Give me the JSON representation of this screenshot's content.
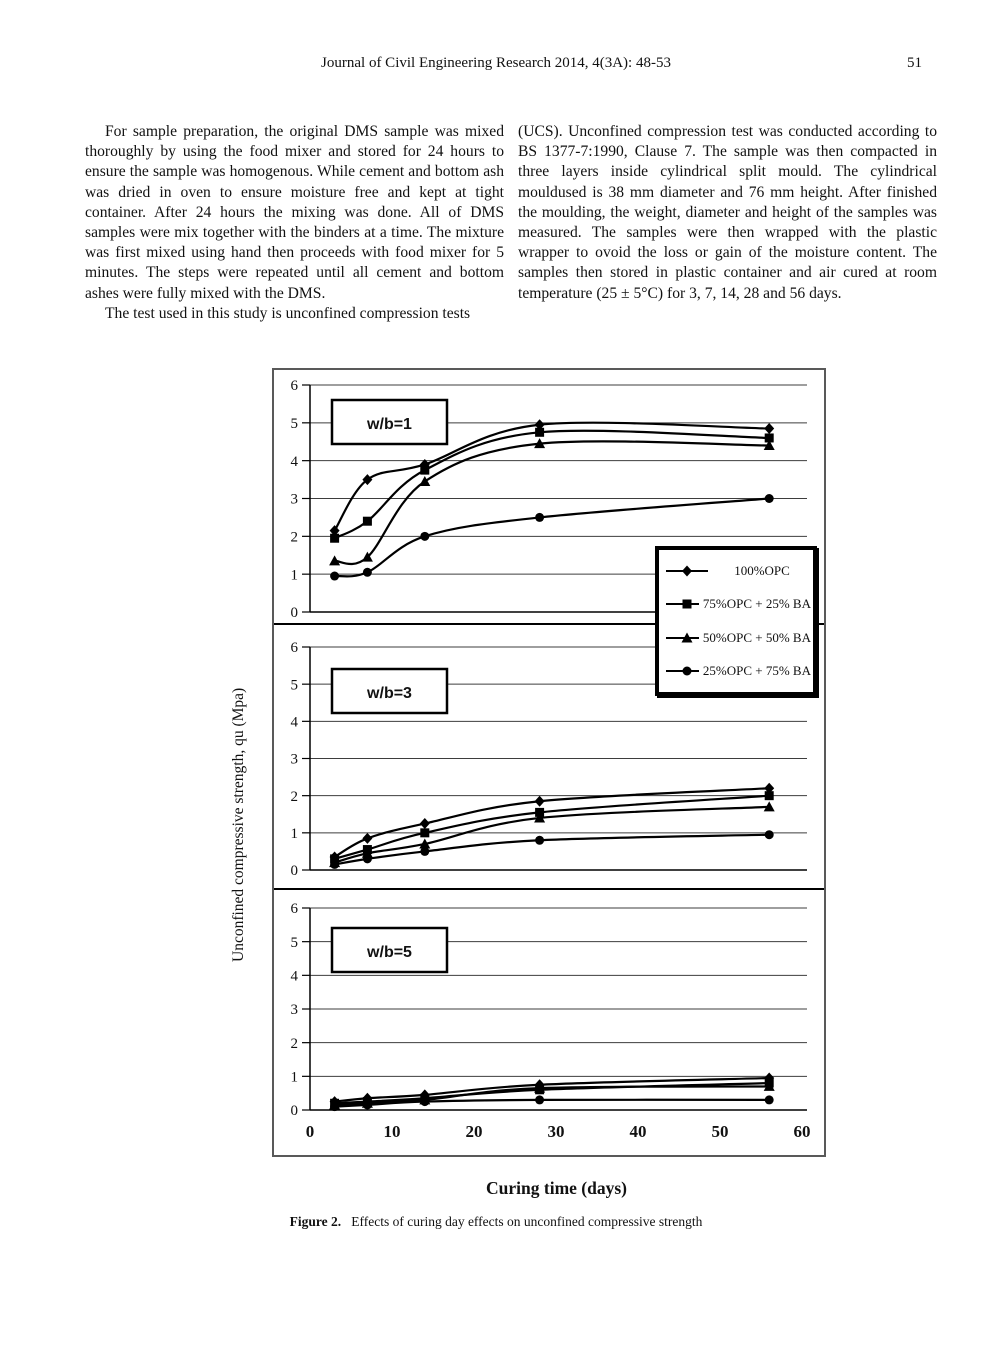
{
  "header": {
    "journal": "Journal of Civil Engineering Research 2014, 4(3A): 48-53",
    "page_number": "51"
  },
  "body": {
    "left_column": [
      "For sample preparation, the original DMS sample was mixed thoroughly by using the food mixer and stored for 24 hours to ensure the sample was homogenous. While cement and bottom ash was dried in oven to ensure moisture free and kept at tight container. After 24 hours the mixing was done. All of DMS samples were mix together with the binders at a time. The mixture was first mixed using hand then proceeds with food mixer for 5 minutes. The steps were repeated until all cement and bottom ashes were fully mixed with the DMS.",
      "The test used in this study is unconfined compression tests"
    ],
    "right_column": [
      "(UCS). Unconfined compression test was conducted according to BS 1377-7:1990, Clause 7. The sample was then compacted in three layers inside cylindrical split mould. The cylindrical mouldused is 38 mm diameter and 76 mm height. After finished the moulding, the weight, diameter and height of the samples was measured. The samples were then wrapped with the plastic wrapper to ovoid the loss or gain of the moisture content. The samples then stored in plastic container and air cured at room temperature (25 ± 5°C) for 3, 7, 14, 28 and 56 days."
    ]
  },
  "figure": {
    "caption_label": "Figure 2.",
    "caption_text": "Effects of curing day effects on unconfined compressive strength",
    "x_axis_label": "Curing time (days)",
    "y_axis_label": "Unconfined compressive strength, qu (Mpa)",
    "legend": {
      "position": "right, overlapping first and second panel",
      "items": [
        {
          "marker": "diamond",
          "label": "100%OPC"
        },
        {
          "marker": "square",
          "label": "75%OPC + 25% BA"
        },
        {
          "marker": "triangle",
          "label": "50%OPC + 50% BA"
        },
        {
          "marker": "circle",
          "label": "25%OPC + 75% BA"
        }
      ]
    }
  },
  "chart_data": [
    {
      "type": "line",
      "title": "w/b=1",
      "x": [
        3,
        7,
        14,
        28,
        56
      ],
      "xlim": [
        0,
        60
      ],
      "ylim": [
        0,
        6
      ],
      "xticks": [
        0,
        10,
        20,
        30,
        40,
        50,
        60
      ],
      "yticks": [
        0,
        1,
        2,
        3,
        4,
        5,
        6
      ],
      "grid": true,
      "xlabel": "Curing time (days)",
      "ylabel": "Unconfined compressive strength, qu (Mpa)",
      "series": [
        {
          "name": "100%OPC",
          "marker": "diamond",
          "values": [
            2.15,
            3.5,
            3.9,
            4.95,
            4.85
          ]
        },
        {
          "name": "75%OPC + 25% BA",
          "marker": "square",
          "values": [
            1.95,
            2.4,
            3.75,
            4.75,
            4.6
          ]
        },
        {
          "name": "50%OPC + 50% BA",
          "marker": "triangle",
          "values": [
            1.35,
            1.45,
            3.45,
            4.45,
            4.4
          ]
        },
        {
          "name": "25%OPC + 75% BA",
          "marker": "circle",
          "values": [
            0.95,
            1.05,
            2.0,
            2.5,
            3.0
          ]
        }
      ]
    },
    {
      "type": "line",
      "title": "w/b=3",
      "x": [
        3,
        7,
        14,
        28,
        56
      ],
      "xlim": [
        0,
        60
      ],
      "ylim": [
        0,
        6
      ],
      "xticks": [
        0,
        10,
        20,
        30,
        40,
        50,
        60
      ],
      "yticks": [
        0,
        1,
        2,
        3,
        4,
        5,
        6
      ],
      "grid": true,
      "xlabel": "Curing time (days)",
      "ylabel": "Unconfined compressive strength, qu (Mpa)",
      "series": [
        {
          "name": "100%OPC",
          "marker": "diamond",
          "values": [
            0.35,
            0.85,
            1.25,
            1.85,
            2.2
          ]
        },
        {
          "name": "75%OPC + 25% BA",
          "marker": "square",
          "values": [
            0.3,
            0.55,
            1.0,
            1.55,
            2.0
          ]
        },
        {
          "name": "50%OPC + 50% BA",
          "marker": "triangle",
          "values": [
            0.2,
            0.45,
            0.7,
            1.4,
            1.7
          ]
        },
        {
          "name": "25%OPC + 75% BA",
          "marker": "circle",
          "values": [
            0.15,
            0.3,
            0.5,
            0.8,
            0.95
          ]
        }
      ]
    },
    {
      "type": "line",
      "title": "w/b=5",
      "x": [
        3,
        7,
        14,
        28,
        56
      ],
      "xlim": [
        0,
        60
      ],
      "ylim": [
        0,
        6
      ],
      "xticks": [
        0,
        10,
        20,
        30,
        40,
        50,
        60
      ],
      "yticks": [
        0,
        1,
        2,
        3,
        4,
        5,
        6
      ],
      "grid": true,
      "xlabel": "Curing time (days)",
      "ylabel": "Unconfined compressive strength, qu (Mpa)",
      "series": [
        {
          "name": "100%OPC",
          "marker": "diamond",
          "values": [
            0.25,
            0.35,
            0.45,
            0.75,
            0.95
          ]
        },
        {
          "name": "75%OPC + 25% BA",
          "marker": "square",
          "values": [
            0.2,
            0.25,
            0.35,
            0.6,
            0.8
          ]
        },
        {
          "name": "50%OPC + 50% BA",
          "marker": "triangle",
          "values": [
            0.15,
            0.2,
            0.3,
            0.65,
            0.7
          ]
        },
        {
          "name": "25%OPC + 75% BA",
          "marker": "circle",
          "values": [
            0.1,
            0.15,
            0.25,
            0.3,
            0.3
          ]
        }
      ]
    }
  ]
}
